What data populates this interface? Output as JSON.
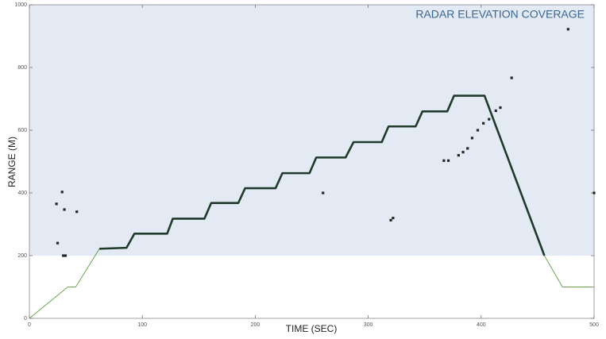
{
  "chart_data": {
    "type": "line",
    "xlabel": "TIME (SEC)",
    "ylabel": "RANGE (M)",
    "annotation": "RADAR ELEVATION COVERAGE",
    "xlim": [
      0,
      500
    ],
    "ylim": [
      0,
      1000
    ],
    "xticks": [
      0,
      100,
      200,
      300,
      400,
      500
    ],
    "yticks": [
      0,
      200,
      400,
      600,
      800,
      1000
    ],
    "band": {
      "range": [
        200,
        1000
      ],
      "color": "#e4eaf4"
    },
    "series": [
      {
        "color": "#6aa84f",
        "width": 1,
        "style": "line",
        "x": [
          0,
          34,
          41,
          62,
          86,
          93,
          122,
          127,
          155,
          161,
          185,
          191,
          218,
          224,
          248,
          254,
          280,
          287,
          312,
          318,
          342,
          348,
          370,
          376,
          403,
          456,
          472,
          500
        ],
        "values": [
          0,
          100,
          100,
          222,
          225,
          270,
          270,
          318,
          318,
          368,
          368,
          415,
          415,
          463,
          463,
          513,
          513,
          562,
          562,
          612,
          612,
          660,
          660,
          710,
          710,
          200,
          100,
          100
        ]
      },
      {
        "color": "#1f3a2a",
        "width": 2.6,
        "style": "line",
        "x": [
          62,
          86,
          93,
          122,
          127,
          155,
          161,
          185,
          191,
          218,
          224,
          248,
          254,
          280,
          287,
          312,
          318,
          342,
          348,
          370,
          376,
          403,
          456
        ],
        "values": [
          222,
          225,
          270,
          270,
          318,
          318,
          368,
          368,
          415,
          415,
          463,
          463,
          513,
          513,
          562,
          562,
          612,
          612,
          660,
          660,
          710,
          710,
          200
        ]
      },
      {
        "color": "#1f2a22",
        "style": "points",
        "x": [
          24,
          29,
          31,
          30,
          32,
          42,
          25,
          260,
          320,
          322,
          367,
          371,
          380,
          384,
          388,
          392,
          397,
          402,
          407,
          413,
          417,
          427,
          477,
          500
        ],
        "values": [
          365,
          403,
          347,
          200,
          200,
          340,
          240,
          400,
          313,
          320,
          503,
          503,
          520,
          530,
          542,
          575,
          600,
          622,
          635,
          662,
          672,
          767,
          922,
          400
        ]
      }
    ]
  }
}
